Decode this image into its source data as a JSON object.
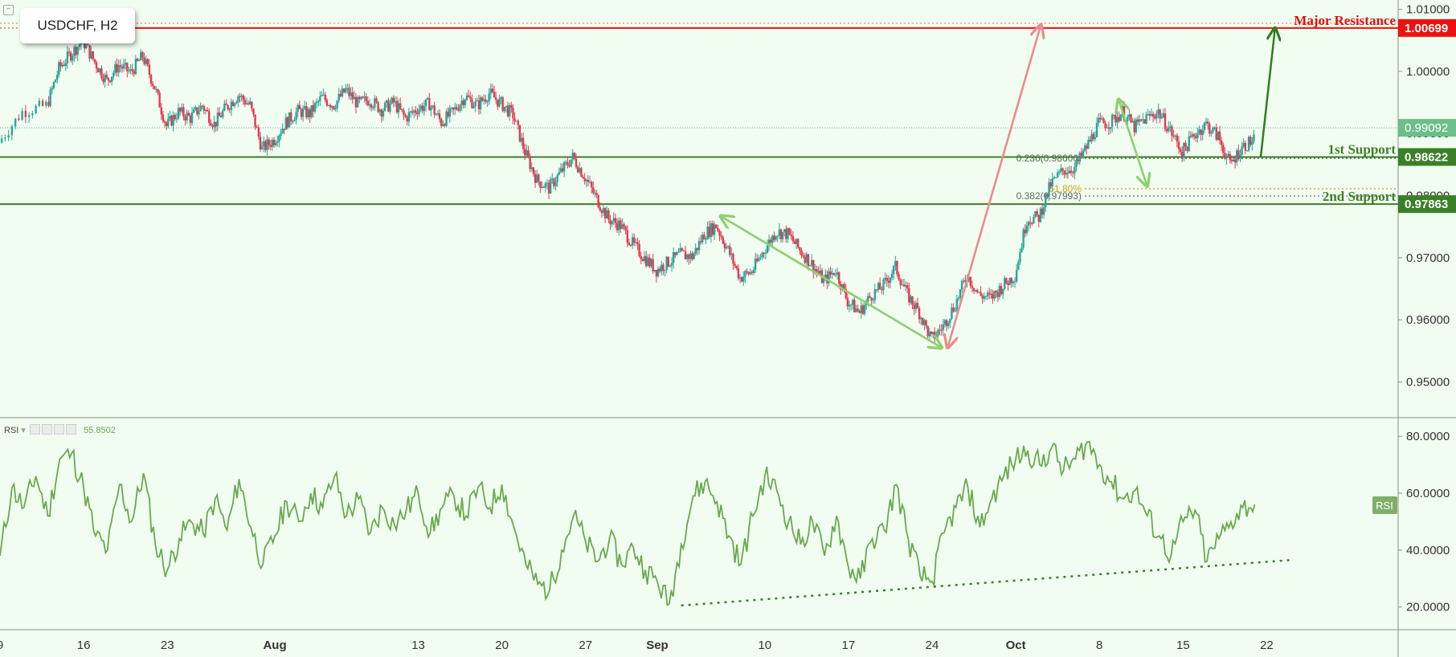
{
  "window": {
    "symbol_label": "USDCHF, H2",
    "collapse_icon": "minus-square-icon"
  },
  "chart_data": [
    {
      "type": "line",
      "subtype": "candlestick",
      "title": "USDCHF, H2",
      "y_axis": {
        "position": "right",
        "ticks": [
          "1.01000",
          "1.00000",
          "0.99000",
          "0.98000",
          "0.97000",
          "0.96000",
          "0.95000"
        ],
        "tick_values": [
          1.01,
          1.0,
          0.99,
          0.98,
          0.97,
          0.96,
          0.95
        ],
        "ylim": [
          0.9445,
          1.0115
        ]
      },
      "x_axis": {
        "ticks": [
          {
            "label": "9",
            "x": 0
          },
          {
            "label": "16",
            "x": 7
          },
          {
            "label": "23",
            "x": 14
          },
          {
            "label": "Aug",
            "x": 23,
            "bold": true
          },
          {
            "label": "13",
            "x": 35
          },
          {
            "label": "20",
            "x": 42
          },
          {
            "label": "27",
            "x": 49
          },
          {
            "label": "Sep",
            "x": 55,
            "bold": true
          },
          {
            "label": "10",
            "x": 64
          },
          {
            "label": "17",
            "x": 71
          },
          {
            "label": "24",
            "x": 78
          },
          {
            "label": "Oct",
            "x": 85,
            "bold": true
          },
          {
            "label": "8",
            "x": 92
          },
          {
            "label": "15",
            "x": 99
          },
          {
            "label": "22",
            "x": 106
          }
        ],
        "xlim": [
          0,
          117
        ]
      },
      "price_path": [
        [
          0,
          0.9885
        ],
        [
          2,
          0.9935
        ],
        [
          4,
          0.9945
        ],
        [
          5,
          1.0005
        ],
        [
          6,
          1.0028
        ],
        [
          7,
          1.005
        ],
        [
          8,
          1.0015
        ],
        [
          9,
          0.9985
        ],
        [
          10,
          1.001
        ],
        [
          11,
          0.9998
        ],
        [
          12,
          1.0025
        ],
        [
          13,
          0.9975
        ],
        [
          14,
          0.9912
        ],
        [
          15,
          0.9935
        ],
        [
          16,
          0.9925
        ],
        [
          17,
          0.9945
        ],
        [
          18,
          0.9915
        ],
        [
          19,
          0.9942
        ],
        [
          20,
          0.9962
        ],
        [
          21,
          0.9945
        ],
        [
          22,
          0.9875
        ],
        [
          23,
          0.989
        ],
        [
          24,
          0.9918
        ],
        [
          25,
          0.9936
        ],
        [
          26,
          0.9932
        ],
        [
          27,
          0.9958
        ],
        [
          28,
          0.9946
        ],
        [
          29,
          0.997
        ],
        [
          30,
          0.9948
        ],
        [
          31,
          0.9955
        ],
        [
          32,
          0.9938
        ],
        [
          33,
          0.995
        ],
        [
          34,
          0.9925
        ],
        [
          35,
          0.994
        ],
        [
          36,
          0.9948
        ],
        [
          37,
          0.9918
        ],
        [
          38,
          0.9935
        ],
        [
          39,
          0.996
        ],
        [
          40,
          0.9945
        ],
        [
          41,
          0.9965
        ],
        [
          42,
          0.9948
        ],
        [
          43,
          0.993
        ],
        [
          44,
          0.987
        ],
        [
          45,
          0.9825
        ],
        [
          46,
          0.9812
        ],
        [
          47,
          0.9838
        ],
        [
          48,
          0.9862
        ],
        [
          49,
          0.983
        ],
        [
          50,
          0.9795
        ],
        [
          51,
          0.9762
        ],
        [
          52,
          0.9752
        ],
        [
          53,
          0.9722
        ],
        [
          54,
          0.97
        ],
        [
          55,
          0.968
        ],
        [
          56,
          0.9693
        ],
        [
          57,
          0.9705
        ],
        [
          58,
          0.9702
        ],
        [
          59,
          0.9738
        ],
        [
          60,
          0.9752
        ],
        [
          61,
          0.9712
        ],
        [
          62,
          0.9668
        ],
        [
          63,
          0.9678
        ],
        [
          64,
          0.9712
        ],
        [
          65,
          0.9742
        ],
        [
          66,
          0.9738
        ],
        [
          67,
          0.9712
        ],
        [
          68,
          0.969
        ],
        [
          69,
          0.9662
        ],
        [
          70,
          0.968
        ],
        [
          71,
          0.963
        ],
        [
          72,
          0.9612
        ],
        [
          73,
          0.964
        ],
        [
          74,
          0.9655
        ],
        [
          75,
          0.9685
        ],
        [
          76,
          0.964
        ],
        [
          77,
          0.9612
        ],
        [
          78,
          0.9568
        ],
        [
          79,
          0.959
        ],
        [
          80,
          0.9625
        ],
        [
          81,
          0.9672
        ],
        [
          82,
          0.964
        ],
        [
          83,
          0.9635
        ],
        [
          84,
          0.9655
        ],
        [
          85,
          0.9672
        ],
        [
          86,
          0.9762
        ],
        [
          87,
          0.9765
        ],
        [
          88,
          0.9818
        ],
        [
          89,
          0.984
        ],
        [
          90,
          0.9845
        ],
        [
          91,
          0.9878
        ],
        [
          92,
          0.9915
        ],
        [
          93,
          0.9918
        ],
        [
          94,
          0.9935
        ],
        [
          95,
          0.991
        ],
        [
          96,
          0.9925
        ],
        [
          97,
          0.9935
        ],
        [
          98,
          0.9905
        ],
        [
          99,
          0.987
        ],
        [
          100,
          0.9898
        ],
        [
          101,
          0.9915
        ],
        [
          102,
          0.9895
        ],
        [
          103,
          0.985
        ],
        [
          104,
          0.9878
        ],
        [
          105,
          0.989
        ]
      ],
      "levels": [
        {
          "name": "Major Resistance",
          "value": 1.00699,
          "label": "1.00699",
          "color": "#ee1111",
          "label_color": "#dd1111"
        },
        {
          "name": "1st Support",
          "value": 0.98622,
          "label": "0.98622",
          "color": "#3b7f28",
          "label_color": "#3f7f25"
        },
        {
          "name": "2nd Support",
          "value": 0.97863,
          "label": "0.97863",
          "color": "#3b7f28",
          "label_color": "#3f7f25"
        }
      ],
      "current_price": {
        "value": 0.99092,
        "label": "0.99092",
        "color": "#6cbf8a"
      },
      "fibonacci": [
        {
          "label": "0.236(0.98600)",
          "value": 0.986,
          "color": "#5a6a5a"
        },
        {
          "label": "61.80%",
          "value": 0.9811,
          "color": "#d4a017"
        },
        {
          "label": "0.382(0.97993)",
          "value": 0.97993,
          "color": "#5a6a5a"
        }
      ],
      "colors": {
        "up": "#26a69a",
        "down": "#e53950",
        "background": "#f1fdf1"
      }
    },
    {
      "type": "line",
      "title": "RSI",
      "value_label": "55.8502",
      "badge": "RSI",
      "y_axis": {
        "ticks": [
          "80.0000",
          "60.0000",
          "40.0000",
          "20.0000"
        ],
        "tick_values": [
          80,
          60,
          40,
          20
        ],
        "ylim": [
          12,
          86
        ]
      },
      "series": [
        {
          "name": "RSI",
          "color": "#6aa84f",
          "points": [
            [
              0,
              38
            ],
            [
              1,
              62
            ],
            [
              2,
              55
            ],
            [
              3,
              66
            ],
            [
              4,
              52
            ],
            [
              5,
              72
            ],
            [
              6,
              74
            ],
            [
              7,
              62
            ],
            [
              8,
              45
            ],
            [
              9,
              40
            ],
            [
              10,
              63
            ],
            [
              11,
              50
            ],
            [
              12,
              67
            ],
            [
              13,
              42
            ],
            [
              14,
              33
            ],
            [
              15,
              44
            ],
            [
              16,
              50
            ],
            [
              17,
              46
            ],
            [
              18,
              58
            ],
            [
              19,
              47
            ],
            [
              20,
              65
            ],
            [
              21,
              48
            ],
            [
              22,
              35
            ],
            [
              23,
              45
            ],
            [
              24,
              57
            ],
            [
              25,
              50
            ],
            [
              26,
              60
            ],
            [
              27,
              55
            ],
            [
              28,
              66
            ],
            [
              29,
              52
            ],
            [
              30,
              58
            ],
            [
              31,
              46
            ],
            [
              32,
              55
            ],
            [
              33,
              49
            ],
            [
              34,
              54
            ],
            [
              35,
              60
            ],
            [
              36,
              46
            ],
            [
              37,
              55
            ],
            [
              38,
              59
            ],
            [
              39,
              52
            ],
            [
              40,
              62
            ],
            [
              41,
              55
            ],
            [
              42,
              63
            ],
            [
              43,
              48
            ],
            [
              44,
              35
            ],
            [
              45,
              28
            ],
            [
              46,
              26
            ],
            [
              47,
              40
            ],
            [
              48,
              52
            ],
            [
              49,
              43
            ],
            [
              50,
              36
            ],
            [
              51,
              44
            ],
            [
              52,
              35
            ],
            [
              53,
              41
            ],
            [
              54,
              33
            ],
            [
              55,
              29
            ],
            [
              56,
              21
            ],
            [
              57,
              42
            ],
            [
              58,
              59
            ],
            [
              59,
              64
            ],
            [
              60,
              57
            ],
            [
              61,
              45
            ],
            [
              62,
              35
            ],
            [
              63,
              52
            ],
            [
              64,
              66
            ],
            [
              65,
              61
            ],
            [
              66,
              50
            ],
            [
              67,
              42
            ],
            [
              68,
              50
            ],
            [
              69,
              38
            ],
            [
              70,
              52
            ],
            [
              71,
              34
            ],
            [
              72,
              30
            ],
            [
              73,
              44
            ],
            [
              74,
              47
            ],
            [
              75,
              63
            ],
            [
              76,
              44
            ],
            [
              77,
              31
            ],
            [
              78,
              29
            ],
            [
              79,
              46
            ],
            [
              80,
              55
            ],
            [
              81,
              62
            ],
            [
              82,
              48
            ],
            [
              83,
              58
            ],
            [
              84,
              66
            ],
            [
              85,
              72
            ],
            [
              86,
              75
            ],
            [
              87,
              70
            ],
            [
              88,
              76
            ],
            [
              89,
              68
            ],
            [
              90,
              72
            ],
            [
              91,
              78
            ],
            [
              92,
              70
            ],
            [
              93,
              64
            ],
            [
              94,
              58
            ],
            [
              95,
              61
            ],
            [
              96,
              52
            ],
            [
              97,
              45
            ],
            [
              98,
              38
            ],
            [
              99,
              50
            ],
            [
              100,
              54
            ],
            [
              101,
              36
            ],
            [
              102,
              44
            ],
            [
              103,
              50
            ],
            [
              104,
              55
            ],
            [
              105,
              56
            ]
          ]
        }
      ],
      "trendline": {
        "x": [
          57,
          108
        ],
        "y": [
          20.5,
          36.5
        ],
        "color": "#3b7f28",
        "style": "dotted"
      }
    }
  ],
  "annotations": {
    "arrows": [
      {
        "from": [
          60.3,
          0.9767
        ],
        "to": [
          78.8,
          0.9555
        ],
        "color": "#8fcf6e",
        "double": true
      },
      {
        "from": [
          79.3,
          0.9555
        ],
        "to": [
          87.1,
          1.0075
        ],
        "color": "#ee8a8a",
        "double": true
      },
      {
        "from": [
          93.6,
          0.9955
        ],
        "to": [
          96.0,
          0.9815
        ],
        "color": "#8fcf6e",
        "double": true
      },
      {
        "from": [
          105.5,
          0.9862
        ],
        "to": [
          106.7,
          1.007
        ],
        "color": "#2e7d1e",
        "double": false
      }
    ]
  }
}
